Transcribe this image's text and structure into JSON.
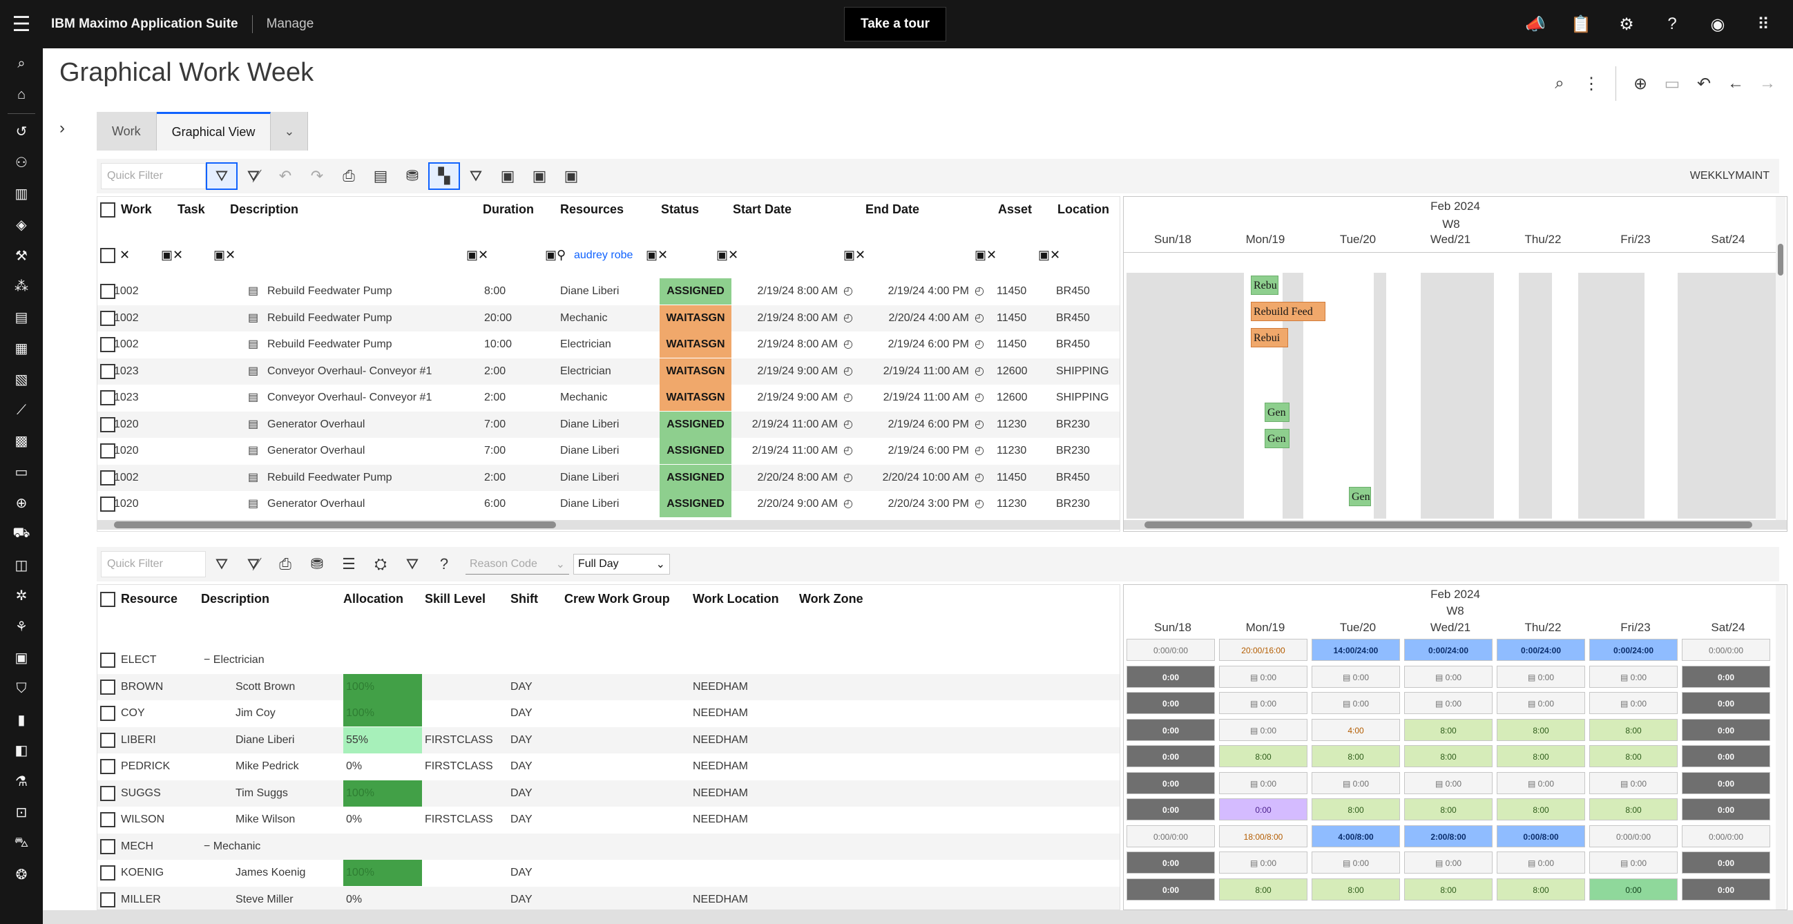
{
  "topbar": {
    "brand": "IBM Maximo Application Suite",
    "app": "Manage",
    "tour_button": "Take a tour",
    "icons": [
      "megaphone-icon",
      "clipboard-icon",
      "settings-icon",
      "help-icon",
      "user-icon",
      "app-switcher-icon"
    ]
  },
  "page": {
    "title": "Graphical Work Week",
    "tabs": [
      "Work",
      "Graphical View"
    ],
    "active_tab": "Graphical View"
  },
  "work_toolbar": {
    "quick_filter_placeholder": "Quick Filter",
    "view_name": "WEKKLYMAINT"
  },
  "work_grid": {
    "columns": [
      "Work",
      "Task",
      "Description",
      "Duration",
      "Resources",
      "Status",
      "Start Date",
      "End Date",
      "Asset",
      "Location"
    ],
    "resource_filter": "audrey robe",
    "rows": [
      {
        "work": "1002",
        "desc": "Rebuild Feedwater Pump",
        "duration": "8:00",
        "resources": "Diane Liberi",
        "status": "ASSIGNED",
        "start": "2/19/24 8:00 AM",
        "end": "2/19/24 4:00 PM",
        "asset": "11450",
        "location": "BR450"
      },
      {
        "work": "1002",
        "desc": "Rebuild Feedwater Pump",
        "duration": "20:00",
        "resources": "Mechanic",
        "status": "WAITASGN",
        "start": "2/19/24 8:00 AM",
        "end": "2/20/24 4:00 AM",
        "asset": "11450",
        "location": "BR450"
      },
      {
        "work": "1002",
        "desc": "Rebuild Feedwater Pump",
        "duration": "10:00",
        "resources": "Electrician",
        "status": "WAITASGN",
        "start": "2/19/24 8:00 AM",
        "end": "2/19/24 6:00 PM",
        "asset": "11450",
        "location": "BR450"
      },
      {
        "work": "1023",
        "desc": "Conveyor Overhaul- Conveyor #1",
        "duration": "2:00",
        "resources": "Electrician",
        "status": "WAITASGN",
        "start": "2/19/24 9:00 AM",
        "end": "2/19/24 11:00 AM",
        "asset": "12600",
        "location": "SHIPPING"
      },
      {
        "work": "1023",
        "desc": "Conveyor Overhaul- Conveyor #1",
        "duration": "2:00",
        "resources": "Mechanic",
        "status": "WAITASGN",
        "start": "2/19/24 9:00 AM",
        "end": "2/19/24 11:00 AM",
        "asset": "12600",
        "location": "SHIPPING"
      },
      {
        "work": "1020",
        "desc": "Generator Overhaul",
        "duration": "7:00",
        "resources": "Diane Liberi",
        "status": "ASSIGNED",
        "start": "2/19/24 11:00 AM",
        "end": "2/19/24 6:00 PM",
        "asset": "11230",
        "location": "BR230"
      },
      {
        "work": "1020",
        "desc": "Generator Overhaul",
        "duration": "7:00",
        "resources": "Diane Liberi",
        "status": "ASSIGNED",
        "start": "2/19/24 11:00 AM",
        "end": "2/19/24 6:00 PM",
        "asset": "11230",
        "location": "BR230"
      },
      {
        "work": "1002",
        "desc": "Rebuild Feedwater Pump",
        "duration": "2:00",
        "resources": "Diane Liberi",
        "status": "ASSIGNED",
        "start": "2/20/24 8:00 AM",
        "end": "2/20/24 10:00 AM",
        "asset": "11450",
        "location": "BR450"
      },
      {
        "work": "1020",
        "desc": "Generator Overhaul",
        "duration": "6:00",
        "resources": "Diane Liberi",
        "status": "ASSIGNED",
        "start": "2/20/24 9:00 AM",
        "end": "2/20/24 3:00 PM",
        "asset": "11230",
        "location": "BR230"
      }
    ]
  },
  "work_gantt": {
    "month": "Feb 2024",
    "week": "W8",
    "days": [
      "Sun/18",
      "Mon/19",
      "Tue/20",
      "Wed/21",
      "Thu/22",
      "Fri/23",
      "Sat/24"
    ],
    "bars": [
      {
        "label": "Rebu",
        "color": "green"
      },
      {
        "label": "Rebuild Feed",
        "color": "orange"
      },
      {
        "label": "Rebui",
        "color": "orange"
      },
      {
        "label": "Gen",
        "color": "green"
      },
      {
        "label": "Gen",
        "color": "green"
      },
      {
        "label": "Gen",
        "color": "green"
      }
    ]
  },
  "resource_toolbar": {
    "quick_filter_placeholder": "Quick Filter",
    "reason_code_placeholder": "Reason Code",
    "full_day": "Full Day"
  },
  "resource_grid": {
    "columns": [
      "Resource",
      "Description",
      "Allocation",
      "Skill Level",
      "Shift",
      "Crew Work Group",
      "Work Location",
      "Work Zone"
    ],
    "rows": [
      {
        "resource": "ELECT",
        "desc": "− Electrician",
        "group": true,
        "alloc": "",
        "alloc_kind": "",
        "skill": "",
        "shift": "",
        "location": ""
      },
      {
        "resource": "BROWN",
        "desc": "Scott Brown",
        "alloc": "100%",
        "alloc_kind": "full",
        "skill": "",
        "shift": "DAY",
        "location": "NEEDHAM"
      },
      {
        "resource": "COY",
        "desc": "Jim Coy",
        "alloc": "100%",
        "alloc_kind": "full",
        "skill": "",
        "shift": "DAY",
        "location": "NEEDHAM"
      },
      {
        "resource": "LIBERI",
        "desc": "Diane Liberi",
        "alloc": "55%",
        "alloc_kind": "part",
        "skill": "FIRSTCLASS",
        "shift": "DAY",
        "location": "NEEDHAM"
      },
      {
        "resource": "PEDRICK",
        "desc": "Mike Pedrick",
        "alloc": "0%",
        "alloc_kind": "",
        "skill": "FIRSTCLASS",
        "shift": "DAY",
        "location": "NEEDHAM"
      },
      {
        "resource": "SUGGS",
        "desc": "Tim Suggs",
        "alloc": "100%",
        "alloc_kind": "full",
        "skill": "",
        "shift": "DAY",
        "location": "NEEDHAM"
      },
      {
        "resource": "WILSON",
        "desc": "Mike Wilson",
        "alloc": "0%",
        "alloc_kind": "",
        "skill": "FIRSTCLASS",
        "shift": "DAY",
        "location": "NEEDHAM"
      },
      {
        "resource": "MECH",
        "desc": "− Mechanic",
        "group": true,
        "alloc": "",
        "alloc_kind": "",
        "skill": "",
        "shift": "",
        "location": ""
      },
      {
        "resource": "KOENIG",
        "desc": "James Koenig",
        "alloc": "100%",
        "alloc_kind": "full",
        "skill": "",
        "shift": "DAY",
        "location": ""
      },
      {
        "resource": "MILLER",
        "desc": "Steve Miller",
        "alloc": "0%",
        "alloc_kind": "",
        "skill": "",
        "shift": "DAY",
        "location": "NEEDHAM"
      }
    ]
  },
  "resource_gantt": {
    "month": "Feb 2024",
    "week": "W8",
    "days": [
      "Sun/18",
      "Mon/19",
      "Tue/20",
      "Wed/21",
      "Thu/22",
      "Fri/23",
      "Sat/24"
    ],
    "rows": [
      [
        [
          "0:00/0:00",
          "light"
        ],
        [
          "20:00/16:00",
          "orangeText"
        ],
        [
          "14:00/24:00",
          "blue"
        ],
        [
          "0:00/24:00",
          "blue"
        ],
        [
          "0:00/24:00",
          "blue"
        ],
        [
          "0:00/24:00",
          "blue"
        ],
        [
          "0:00/0:00",
          "light"
        ]
      ],
      [
        [
          "0:00",
          "dark"
        ],
        [
          "0:00",
          "light"
        ],
        [
          "0:00",
          "light"
        ],
        [
          "0:00",
          "light"
        ],
        [
          "0:00",
          "light"
        ],
        [
          "0:00",
          "light"
        ],
        [
          "0:00",
          "dark"
        ]
      ],
      [
        [
          "0:00",
          "dark"
        ],
        [
          "0:00",
          "light"
        ],
        [
          "0:00",
          "light"
        ],
        [
          "0:00",
          "light"
        ],
        [
          "0:00",
          "light"
        ],
        [
          "0:00",
          "light"
        ],
        [
          "0:00",
          "dark"
        ]
      ],
      [
        [
          "0:00",
          "dark"
        ],
        [
          "0:00",
          "light"
        ],
        [
          "4:00",
          "orangeText"
        ],
        [
          "8:00",
          "green"
        ],
        [
          "8:00",
          "green"
        ],
        [
          "8:00",
          "green"
        ],
        [
          "0:00",
          "dark"
        ]
      ],
      [
        [
          "0:00",
          "dark"
        ],
        [
          "8:00",
          "green"
        ],
        [
          "8:00",
          "green"
        ],
        [
          "8:00",
          "green"
        ],
        [
          "8:00",
          "green"
        ],
        [
          "8:00",
          "green"
        ],
        [
          "0:00",
          "dark"
        ]
      ],
      [
        [
          "0:00",
          "dark"
        ],
        [
          "0:00",
          "light"
        ],
        [
          "0:00",
          "light"
        ],
        [
          "0:00",
          "light"
        ],
        [
          "0:00",
          "light"
        ],
        [
          "0:00",
          "light"
        ],
        [
          "0:00",
          "dark"
        ]
      ],
      [
        [
          "0:00",
          "dark"
        ],
        [
          "0:00",
          "purple"
        ],
        [
          "8:00",
          "green"
        ],
        [
          "8:00",
          "green"
        ],
        [
          "8:00",
          "green"
        ],
        [
          "8:00",
          "green"
        ],
        [
          "0:00",
          "dark"
        ]
      ],
      [
        [
          "0:00/0:00",
          "light"
        ],
        [
          "18:00/8:00",
          "orangeText"
        ],
        [
          "4:00/8:00",
          "blue"
        ],
        [
          "2:00/8:00",
          "blue"
        ],
        [
          "0:00/8:00",
          "blue"
        ],
        [
          "0:00/0:00",
          "light"
        ],
        [
          "0:00/0:00",
          "light"
        ]
      ],
      [
        [
          "0:00",
          "dark"
        ],
        [
          "0:00",
          "light"
        ],
        [
          "0:00",
          "light"
        ],
        [
          "0:00",
          "light"
        ],
        [
          "0:00",
          "light"
        ],
        [
          "0:00",
          "light"
        ],
        [
          "0:00",
          "dark"
        ]
      ],
      [
        [
          "0:00",
          "dark"
        ],
        [
          "8:00",
          "green"
        ],
        [
          "8:00",
          "green"
        ],
        [
          "8:00",
          "green"
        ],
        [
          "8:00",
          "green"
        ],
        [
          "0:00",
          "bright"
        ],
        [
          "0:00",
          "dark"
        ]
      ]
    ]
  }
}
